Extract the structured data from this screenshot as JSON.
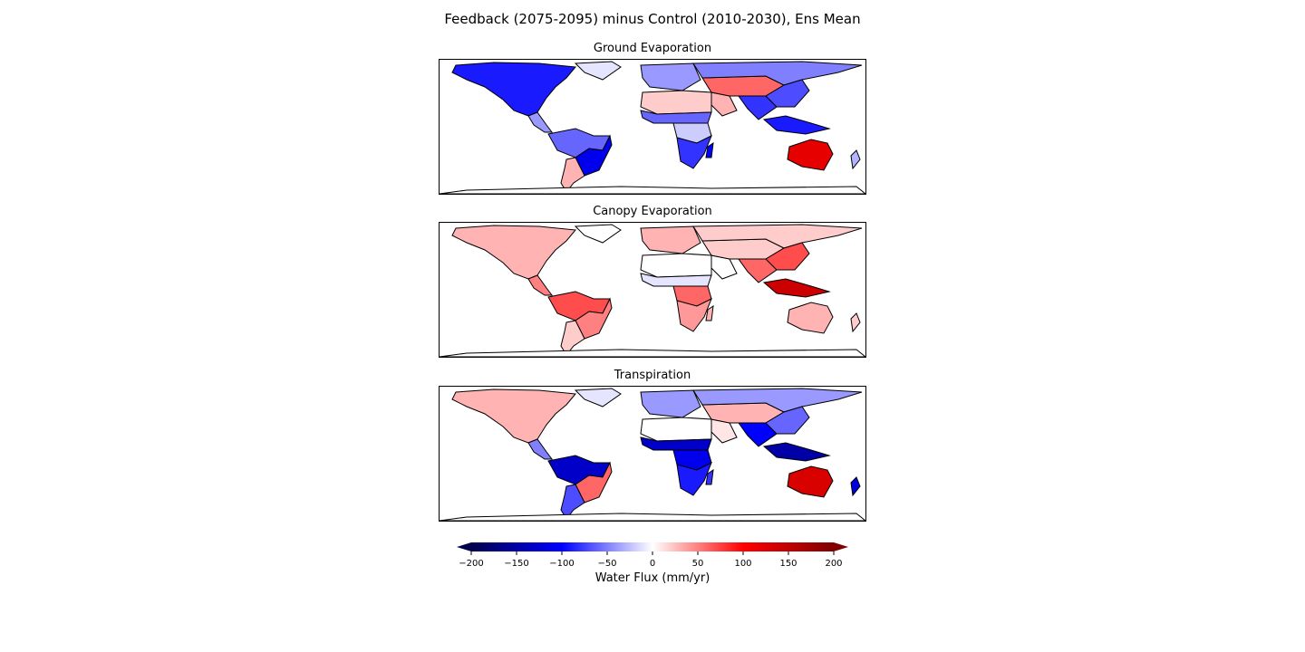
{
  "figure": {
    "title": "Feedback (2075-2095) minus Control (2010-2030), Ens Mean"
  },
  "panels": [
    {
      "title": "Ground Evaporation",
      "regions": [
        {
          "name": "North America",
          "value": -90
        },
        {
          "name": "Central America",
          "value": -40
        },
        {
          "name": "South America north",
          "value": -60
        },
        {
          "name": "South America east",
          "value": -110
        },
        {
          "name": "South America south",
          "value": 30
        },
        {
          "name": "Greenland",
          "value": -10
        },
        {
          "name": "Europe",
          "value": -40
        },
        {
          "name": "Sahara",
          "value": 20
        },
        {
          "name": "Sahel",
          "value": -60
        },
        {
          "name": "Central Africa",
          "value": -20
        },
        {
          "name": "Southern Africa",
          "value": -80
        },
        {
          "name": "Madagascar",
          "value": -100
        },
        {
          "name": "Arabia",
          "value": 30
        },
        {
          "name": "Middle East / Central Asia",
          "value": 60
        },
        {
          "name": "Siberia",
          "value": -50
        },
        {
          "name": "South Asia",
          "value": -80
        },
        {
          "name": "East Asia",
          "value": -70
        },
        {
          "name": "Southeast Asia islands",
          "value": -90
        },
        {
          "name": "Australia",
          "value": 120
        },
        {
          "name": "New Zealand",
          "value": -30
        },
        {
          "name": "Antarctica coast",
          "value": 0
        }
      ]
    },
    {
      "title": "Canopy Evaporation",
      "regions": [
        {
          "name": "North America",
          "value": 30
        },
        {
          "name": "Central America",
          "value": 50
        },
        {
          "name": "South America north",
          "value": 70
        },
        {
          "name": "South America east",
          "value": 50
        },
        {
          "name": "South America south",
          "value": 20
        },
        {
          "name": "Greenland",
          "value": 0
        },
        {
          "name": "Europe",
          "value": 30
        },
        {
          "name": "Sahara",
          "value": 0
        },
        {
          "name": "Sahel",
          "value": -10
        },
        {
          "name": "Central Africa",
          "value": 60
        },
        {
          "name": "Southern Africa",
          "value": 40
        },
        {
          "name": "Madagascar",
          "value": 30
        },
        {
          "name": "Arabia",
          "value": 0
        },
        {
          "name": "Middle East / Central Asia",
          "value": 20
        },
        {
          "name": "Siberia",
          "value": 20
        },
        {
          "name": "South Asia",
          "value": 60
        },
        {
          "name": "East Asia",
          "value": 70
        },
        {
          "name": "Southeast Asia islands",
          "value": 140
        },
        {
          "name": "Australia",
          "value": 30
        },
        {
          "name": "New Zealand",
          "value": 20
        },
        {
          "name": "Antarctica coast",
          "value": 0
        }
      ]
    },
    {
      "title": "Transpiration",
      "regions": [
        {
          "name": "North America",
          "value": 30
        },
        {
          "name": "Central America",
          "value": -50
        },
        {
          "name": "South America north",
          "value": -130
        },
        {
          "name": "South America east",
          "value": 60
        },
        {
          "name": "South America south",
          "value": -70
        },
        {
          "name": "Greenland",
          "value": -10
        },
        {
          "name": "Europe",
          "value": -40
        },
        {
          "name": "Sahara",
          "value": 0
        },
        {
          "name": "Sahel",
          "value": -130
        },
        {
          "name": "Central Africa",
          "value": -110
        },
        {
          "name": "Southern Africa",
          "value": -90
        },
        {
          "name": "Madagascar",
          "value": -80
        },
        {
          "name": "Arabia",
          "value": 10
        },
        {
          "name": "Middle East / Central Asia",
          "value": 30
        },
        {
          "name": "Siberia",
          "value": -40
        },
        {
          "name": "South Asia",
          "value": -100
        },
        {
          "name": "East Asia",
          "value": -60
        },
        {
          "name": "Southeast Asia islands",
          "value": -150
        },
        {
          "name": "Australia",
          "value": 130
        },
        {
          "name": "New Zealand",
          "value": -120
        },
        {
          "name": "Antarctica coast",
          "value": 0
        }
      ]
    }
  ],
  "colorbar": {
    "label": "Water Flux (mm/yr)",
    "colormap": "seismic",
    "range": [
      -200,
      200
    ],
    "extend": "both",
    "ticks": [
      -200,
      -150,
      -100,
      -50,
      0,
      50,
      100,
      150,
      200
    ],
    "tick_labels": [
      "−200",
      "−150",
      "−100",
      "−50",
      "0",
      "50",
      "100",
      "150",
      "200"
    ]
  }
}
